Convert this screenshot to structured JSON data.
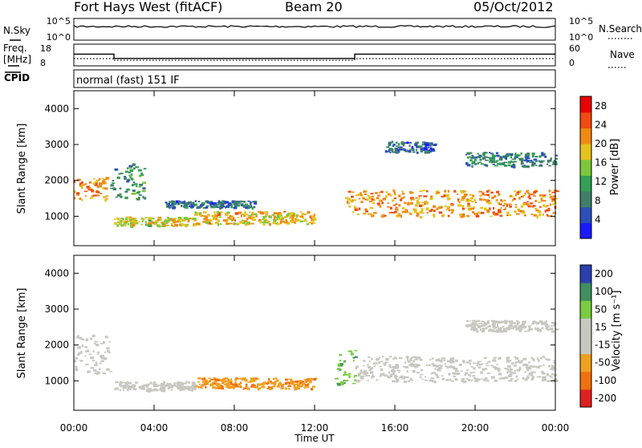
{
  "header": {
    "station": "Fort Hays West (fitACF)",
    "beam": "Beam 20",
    "date": "05/Oct/2012"
  },
  "noise_panel": {
    "left_label": "N.Sky",
    "left_ticks": [
      "10^5",
      "10^0"
    ],
    "right_label": "N.Search",
    "right_ticks": [
      "10^5",
      "10^0"
    ]
  },
  "freq_panel": {
    "left_label_line1": "Freq.",
    "left_label_line2": "[MHz]",
    "left_ticks": [
      "18",
      "8"
    ],
    "right_label": "Nave",
    "right_ticks": [
      "60",
      "0"
    ],
    "freq_steps": [
      {
        "t0": 0.0,
        "t1": 2.0,
        "f": 15.0
      },
      {
        "t0": 2.0,
        "t1": 14.0,
        "f": 12.0
      },
      {
        "t0": 14.0,
        "t1": 24.0,
        "f": 15.0
      }
    ]
  },
  "cpid": {
    "label": "CPID",
    "text": "normal (fast) 151 IF"
  },
  "time_axis": {
    "label": "Time UT",
    "ticks": [
      "00:00",
      "04:00",
      "08:00",
      "12:00",
      "16:00",
      "20:00",
      "00:00"
    ],
    "range_hours": [
      0,
      24
    ]
  },
  "colors": {
    "power": [
      "#1a1aff",
      "#2a4fb8",
      "#3f7f6a",
      "#33a055",
      "#7cc83a",
      "#e6c21e",
      "#f08a14",
      "#f04a10",
      "#e80000"
    ],
    "velocity": [
      "#e02020",
      "#f07010",
      "#f0a020",
      "#c8c8c0",
      "#c8c8c0",
      "#7acc40",
      "#3f8f5f",
      "#2a3fb0"
    ],
    "ground": "#c8c8c0"
  },
  "chart_data": [
    {
      "type": "heatmap",
      "name": "power",
      "ylabel": "Slant Range [km]",
      "xlabel": "",
      "ylim": [
        180,
        4500
      ],
      "yticks": [
        "1000",
        "2000",
        "3000",
        "4000"
      ],
      "xlim": [
        0,
        24
      ],
      "colorbar_label": "Power [dB]",
      "colorbar_ticks": [
        "4",
        "8",
        "12",
        "16",
        "20",
        "24",
        "28"
      ],
      "clim": [
        0,
        30
      ],
      "echo_regions": [
        {
          "t0": 0.0,
          "t1": 1.6,
          "r0": 1450,
          "r1": 2100,
          "level": 22
        },
        {
          "t0": 1.8,
          "t1": 3.5,
          "r0": 1500,
          "r1": 2500,
          "level": 10
        },
        {
          "t0": 2.0,
          "t1": 6.0,
          "r0": 750,
          "r1": 1000,
          "level": 18
        },
        {
          "t0": 4.5,
          "t1": 9.0,
          "r0": 1250,
          "r1": 1450,
          "level": 6
        },
        {
          "t0": 6.0,
          "t1": 12.0,
          "r0": 800,
          "r1": 1150,
          "level": 20
        },
        {
          "t0": 13.5,
          "t1": 24.0,
          "r0": 1000,
          "r1": 1750,
          "level": 22
        },
        {
          "t0": 15.5,
          "t1": 18.0,
          "r0": 2800,
          "r1": 3100,
          "level": 6
        },
        {
          "t0": 19.5,
          "t1": 24.0,
          "r0": 2400,
          "r1": 2800,
          "level": 8
        }
      ]
    },
    {
      "type": "heatmap",
      "name": "velocity",
      "ylabel": "Slant Range [km]",
      "xlabel": "",
      "ylim": [
        180,
        4500
      ],
      "yticks": [
        "1000",
        "2000",
        "3000",
        "4000"
      ],
      "xlim": [
        0,
        24
      ],
      "colorbar_label": "Velocity [m s⁻¹]",
      "colorbar_ticks": [
        "200",
        "100",
        "50",
        "15",
        "-15",
        "-50",
        "-100",
        "-200"
      ],
      "clim": [
        -250,
        250
      ],
      "echo_regions": [
        {
          "t0": 0.0,
          "t1": 1.8,
          "r0": 1200,
          "r1": 2300,
          "v": 0
        },
        {
          "t0": 2.0,
          "t1": 6.0,
          "r0": 750,
          "r1": 1000,
          "v": 0
        },
        {
          "t0": 6.0,
          "t1": 12.0,
          "r0": 800,
          "r1": 1100,
          "v": -60
        },
        {
          "t0": 13.0,
          "t1": 14.0,
          "r0": 900,
          "r1": 1900,
          "v": 60
        },
        {
          "t0": 14.0,
          "t1": 24.0,
          "r0": 1000,
          "r1": 1700,
          "v": 0
        },
        {
          "t0": 19.5,
          "t1": 24.0,
          "r0": 2400,
          "r1": 2700,
          "v": 0
        }
      ]
    }
  ]
}
